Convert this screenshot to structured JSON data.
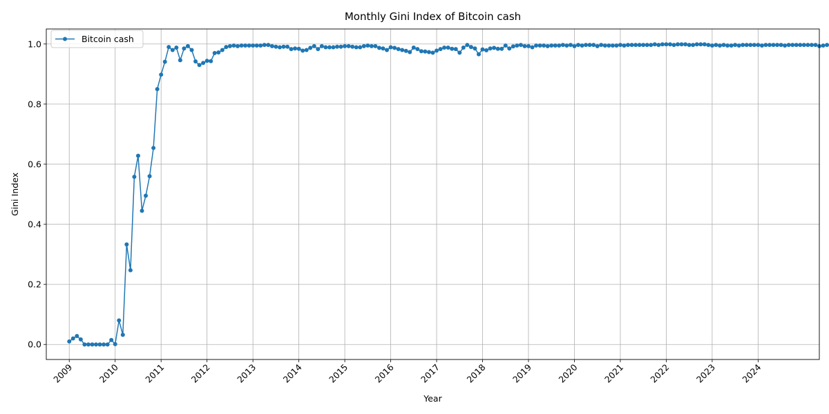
{
  "chart_data": {
    "type": "line",
    "title": "Monthly Gini Index of Bitcoin cash",
    "xlabel": "Year",
    "ylabel": "Gini Index",
    "x_ticks": [
      "2009",
      "2010",
      "2011",
      "2012",
      "2013",
      "2014",
      "2015",
      "2016",
      "2017",
      "2018",
      "2019",
      "2020",
      "2021",
      "2022",
      "2023",
      "2024"
    ],
    "y_ticks": [
      "0.0",
      "0.2",
      "0.4",
      "0.6",
      "0.8",
      "1.0"
    ],
    "ylim": [
      -0.05,
      1.05
    ],
    "xlim": [
      "2008-07",
      "2025-05"
    ],
    "grid": true,
    "legend_position": "top-left",
    "color": "#1f77b4",
    "series": [
      {
        "name": "Bitcoin cash",
        "start": "2009-01",
        "frequency": "monthly",
        "values": [
          0.01,
          0.02,
          0.028,
          0.017,
          0.0,
          0.0,
          0.0,
          0.0,
          0.0,
          0.0,
          0.0,
          0.015,
          0.001,
          0.08,
          0.032,
          0.333,
          0.247,
          0.558,
          0.628,
          0.445,
          0.495,
          0.56,
          0.654,
          0.85,
          0.898,
          0.941,
          0.99,
          0.98,
          0.988,
          0.946,
          0.985,
          0.993,
          0.98,
          0.942,
          0.93,
          0.937,
          0.944,
          0.943,
          0.97,
          0.972,
          0.98,
          0.99,
          0.993,
          0.995,
          0.993,
          0.995,
          0.995,
          0.995,
          0.995,
          0.995,
          0.995,
          0.997,
          0.997,
          0.993,
          0.991,
          0.989,
          0.991,
          0.991,
          0.983,
          0.985,
          0.984,
          0.978,
          0.98,
          0.987,
          0.993,
          0.983,
          0.993,
          0.989,
          0.989,
          0.989,
          0.991,
          0.991,
          0.993,
          0.993,
          0.991,
          0.989,
          0.989,
          0.993,
          0.995,
          0.993,
          0.993,
          0.987,
          0.985,
          0.98,
          0.989,
          0.987,
          0.983,
          0.98,
          0.977,
          0.973,
          0.988,
          0.983,
          0.976,
          0.975,
          0.973,
          0.971,
          0.978,
          0.983,
          0.988,
          0.988,
          0.984,
          0.983,
          0.971,
          0.988,
          0.997,
          0.99,
          0.985,
          0.966,
          0.982,
          0.979,
          0.985,
          0.987,
          0.984,
          0.984,
          0.995,
          0.985,
          0.992,
          0.995,
          0.997,
          0.993,
          0.993,
          0.989,
          0.995,
          0.995,
          0.995,
          0.993,
          0.995,
          0.995,
          0.995,
          0.997,
          0.995,
          0.997,
          0.993,
          0.997,
          0.995,
          0.997,
          0.997,
          0.997,
          0.993,
          0.997,
          0.995,
          0.995,
          0.995,
          0.995,
          0.997,
          0.995,
          0.997,
          0.997,
          0.997,
          0.997,
          0.997,
          0.997,
          0.997,
          0.999,
          0.997,
          0.999,
          0.999,
          0.999,
          0.997,
          0.999,
          0.999,
          0.999,
          0.997,
          0.997,
          0.999,
          0.999,
          0.999,
          0.997,
          0.995,
          0.997,
          0.995,
          0.997,
          0.995,
          0.995,
          0.997,
          0.995,
          0.997,
          0.997,
          0.997,
          0.997,
          0.997,
          0.995,
          0.997,
          0.997,
          0.997,
          0.997,
          0.997,
          0.995,
          0.997,
          0.997,
          0.997,
          0.997,
          0.997,
          0.997,
          0.997,
          0.997,
          0.993,
          0.995,
          0.997,
          0.997,
          0.997
        ]
      }
    ]
  }
}
